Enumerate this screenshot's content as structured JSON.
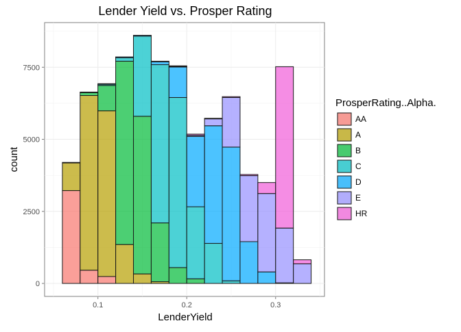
{
  "chart_data": {
    "type": "bar",
    "stacked": true,
    "title": "Lender Yield vs. Prosper Rating",
    "xlabel": "LenderYield",
    "ylabel": "count",
    "xlim": [
      0.04,
      0.355
    ],
    "ylim": [
      -450,
      9050
    ],
    "x_ticks": [
      0.1,
      0.2,
      0.3
    ],
    "x_tick_labels": [
      "0.1",
      "0.2",
      "0.3"
    ],
    "y_ticks": [
      0,
      2500,
      5000,
      7500
    ],
    "y_tick_labels": [
      "0",
      "2500",
      "5000",
      "7500"
    ],
    "grid": true,
    "legend": {
      "title": "ProsperRating..Alpha.",
      "position": "right"
    },
    "bins": [
      [
        0.06,
        0.08
      ],
      [
        0.08,
        0.1
      ],
      [
        0.1,
        0.12
      ],
      [
        0.12,
        0.14
      ],
      [
        0.14,
        0.16
      ],
      [
        0.16,
        0.18
      ],
      [
        0.18,
        0.2
      ],
      [
        0.2,
        0.22
      ],
      [
        0.22,
        0.24
      ],
      [
        0.24,
        0.26
      ],
      [
        0.26,
        0.28
      ],
      [
        0.28,
        0.3
      ],
      [
        0.3,
        0.32
      ],
      [
        0.32,
        0.34
      ]
    ],
    "series": [
      {
        "name": "AA",
        "color": "#F8766D",
        "values": [
          3220,
          460,
          240,
          0,
          0,
          0,
          0,
          0,
          0,
          0,
          0,
          0,
          0,
          0
        ]
      },
      {
        "name": "A",
        "color": "#B79F00",
        "values": [
          960,
          6060,
          5750,
          1350,
          330,
          60,
          0,
          0,
          0,
          0,
          0,
          0,
          0,
          0
        ]
      },
      {
        "name": "B",
        "color": "#00BA38",
        "values": [
          20,
          100,
          880,
          6360,
          5470,
          2040,
          550,
          160,
          0,
          0,
          0,
          0,
          0,
          0
        ]
      },
      {
        "name": "C",
        "color": "#00BFC4",
        "values": [
          0,
          20,
          40,
          120,
          2780,
          5490,
          5900,
          2500,
          1390,
          90,
          0,
          0,
          0,
          0
        ]
      },
      {
        "name": "D",
        "color": "#00A9FF",
        "values": [
          0,
          0,
          20,
          30,
          30,
          100,
          1060,
          2440,
          4080,
          4640,
          1450,
          400,
          20,
          0
        ]
      },
      {
        "name": "E",
        "color": "#9590FF",
        "values": [
          0,
          0,
          0,
          0,
          0,
          20,
          20,
          40,
          240,
          1720,
          2290,
          2720,
          1900,
          680
        ]
      },
      {
        "name": "HR",
        "color": "#F15CD8",
        "values": [
          0,
          0,
          0,
          0,
          0,
          0,
          20,
          40,
          20,
          30,
          40,
          380,
          5600,
          140
        ]
      }
    ]
  }
}
